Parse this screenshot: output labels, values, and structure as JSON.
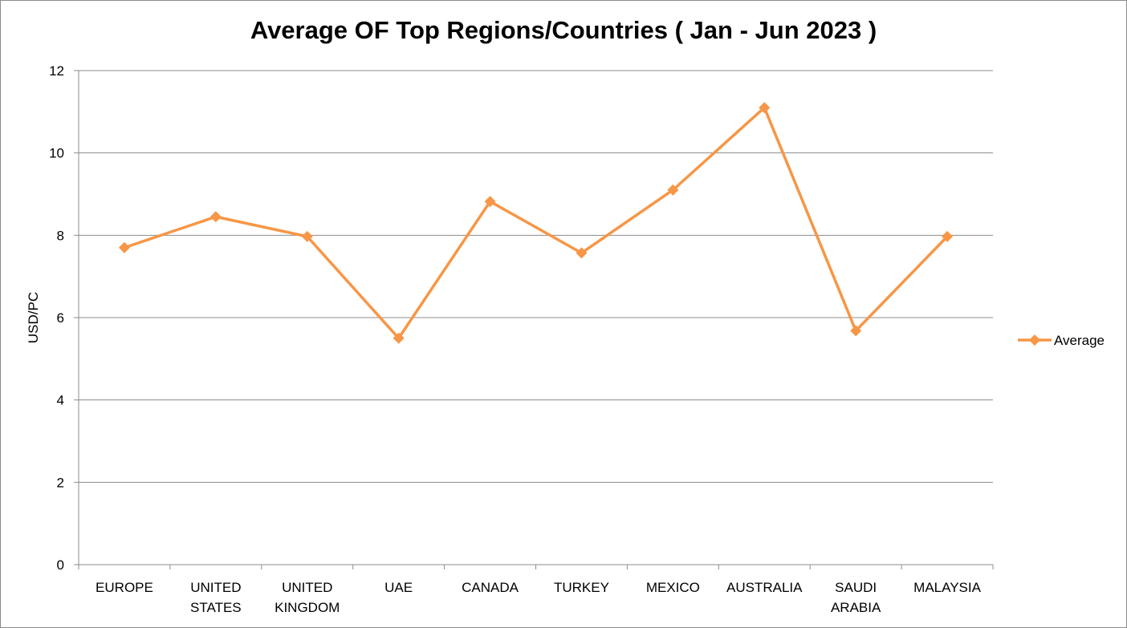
{
  "chart_data": {
    "type": "line",
    "title": "Average OF Top Regions/Countries ( Jan - Jun 2023 )",
    "xlabel": "",
    "ylabel": "USD/PC",
    "ylim": [
      0,
      12
    ],
    "yticks": [
      0,
      2,
      4,
      6,
      8,
      10,
      12
    ],
    "grid": true,
    "legend_position": "right",
    "categories": [
      [
        "EUROPE"
      ],
      [
        "UNITED",
        "STATES"
      ],
      [
        "UNITED",
        "KINGDOM"
      ],
      [
        "UAE"
      ],
      [
        "CANADA"
      ],
      [
        "TURKEY"
      ],
      [
        "MEXICO"
      ],
      [
        "AUSTRALIA"
      ],
      [
        "SAUDI",
        "ARABIA"
      ],
      [
        "MALAYSIA"
      ]
    ],
    "series": [
      {
        "name": "Average",
        "color": "#F79646",
        "marker": "diamond",
        "values": [
          7.7,
          8.45,
          7.97,
          5.5,
          8.82,
          7.57,
          9.1,
          11.1,
          5.68,
          7.97
        ]
      }
    ]
  }
}
